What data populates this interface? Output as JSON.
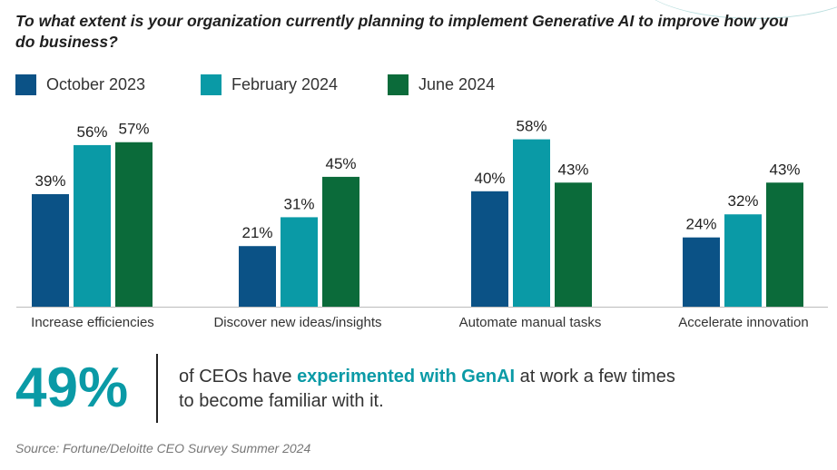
{
  "chart_data": {
    "type": "bar",
    "title": "To what extent is your organization currently planning to implement Generative AI to improve how you do business?",
    "categories": [
      "Increase efficiencies",
      "Discover new ideas/insights",
      "Automate manual tasks",
      "Accelerate innovation"
    ],
    "series": [
      {
        "name": "October 2023",
        "color": "#0b5286",
        "values": [
          39,
          21,
          40,
          24
        ]
      },
      {
        "name": "February 2024",
        "color": "#0a9aa6",
        "values": [
          56,
          31,
          58,
          32
        ]
      },
      {
        "name": "June 2024",
        "color": "#0b6b3a",
        "values": [
          57,
          45,
          43,
          43
        ]
      }
    ],
    "ylim": [
      0,
      60
    ],
    "value_suffix": "%",
    "grid": false,
    "legend_position": "top-left"
  },
  "callout": {
    "stat": "49%",
    "text_before": "of CEOs have ",
    "highlight": "experimented with GenAI",
    "text_after": " at work a few times to become familiar with it."
  },
  "source": "Source: Fortune/Deloitte CEO Survey Summer 2024"
}
